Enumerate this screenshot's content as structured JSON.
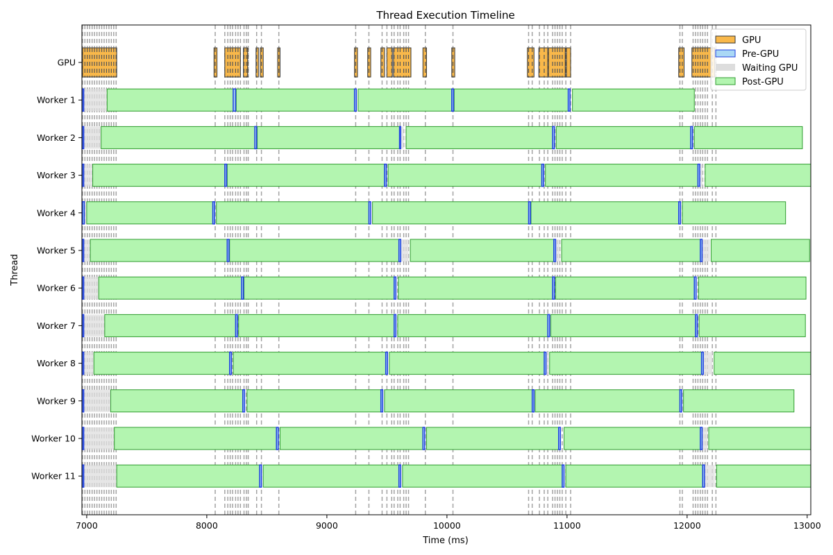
{
  "chart_data": {
    "type": "timeline",
    "title": "Thread Execution Timeline",
    "xlabel": "Time (ms)",
    "ylabel": "Thread",
    "xlim": [
      6960,
      13030
    ],
    "xticks": [
      7000,
      8000,
      9000,
      10000,
      11000,
      12000,
      13000
    ],
    "xtick_labels": [
      "7000",
      "8000",
      "9000",
      "10000",
      "11000",
      "12000",
      "13000"
    ],
    "grid": false,
    "legend_position": "top-right",
    "legend": [
      {
        "key": "gpu",
        "label": "GPU"
      },
      {
        "key": "pre",
        "label": "Pre-GPU"
      },
      {
        "key": "wait",
        "label": "Waiting GPU"
      },
      {
        "key": "post",
        "label": "Post-GPU"
      }
    ],
    "colors": {
      "gpu_fill": "#f9b84a",
      "gpu_edge": "#333333",
      "pre_fill": "#aad8f5",
      "pre_edge": "#1f3fe0",
      "wait_fill": "#dddddd",
      "post_fill": "#b3f5b0",
      "post_edge": "#2e9b2e",
      "marker_line": "#999999"
    },
    "gpu_marks": [
      6965,
      6985,
      7005,
      7025,
      7045,
      7065,
      7085,
      7105,
      7125,
      7145,
      7165,
      7185,
      7205,
      7225,
      7245,
      8070,
      8150,
      8175,
      8195,
      8215,
      8240,
      8260,
      8280,
      8310,
      8330,
      8345,
      8415,
      8455,
      8600,
      9240,
      9350,
      9460,
      9500,
      9540,
      9560,
      9590,
      9610,
      9640,
      9660,
      9680,
      9820,
      10050,
      10680,
      10710,
      10770,
      10810,
      10840,
      10880,
      10900,
      10920,
      10940,
      10960,
      10990,
      11030,
      11940,
      11960,
      12050,
      12070,
      12090,
      12110,
      12130,
      12150,
      12170,
      12210,
      12240
    ],
    "gpu_blocks": [
      [
        6965,
        7250
      ],
      [
        8060,
        8085
      ],
      [
        8150,
        8280
      ],
      [
        8305,
        8340
      ],
      [
        8410,
        8430
      ],
      [
        8445,
        8470
      ],
      [
        8590,
        8610
      ],
      [
        9230,
        9255
      ],
      [
        9340,
        9365
      ],
      [
        9450,
        9480
      ],
      [
        9500,
        9545
      ],
      [
        9555,
        9700
      ],
      [
        9800,
        9830
      ],
      [
        10040,
        10065
      ],
      [
        10670,
        10725
      ],
      [
        10765,
        10840
      ],
      [
        10845,
        10985
      ],
      [
        10995,
        11030
      ],
      [
        11930,
        11975
      ],
      [
        12040,
        12230
      ]
    ],
    "workers": [
      {
        "name": "Worker 1",
        "segments": [
          [
            "pre",
            6965,
            6975
          ],
          [
            "wait",
            6975,
            7170
          ],
          [
            "post",
            7170,
            8220
          ],
          [
            "pre",
            8220,
            8240
          ],
          [
            "post",
            8245,
            9230
          ],
          [
            "pre",
            9230,
            9245
          ],
          [
            "post",
            9260,
            10040
          ],
          [
            "pre",
            10040,
            10055
          ],
          [
            "post",
            10060,
            11010
          ],
          [
            "pre",
            11010,
            11025
          ],
          [
            "post",
            11045,
            12060
          ]
        ]
      },
      {
        "name": "Worker 2",
        "segments": [
          [
            "pre",
            6965,
            6975
          ],
          [
            "wait",
            6975,
            7120
          ],
          [
            "post",
            7120,
            8400
          ],
          [
            "pre",
            8400,
            8415
          ],
          [
            "post",
            8420,
            9605
          ],
          [
            "pre",
            9605,
            9615
          ],
          [
            "wait",
            9615,
            9640
          ],
          [
            "post",
            9660,
            10880
          ],
          [
            "pre",
            10880,
            10895
          ],
          [
            "post",
            10910,
            12030
          ],
          [
            "pre",
            12030,
            12045
          ],
          [
            "post",
            12060,
            12960
          ]
        ]
      },
      {
        "name": "Worker 3",
        "segments": [
          [
            "pre",
            6965,
            6975
          ],
          [
            "wait",
            6975,
            7050
          ],
          [
            "post",
            7050,
            8150
          ],
          [
            "pre",
            8150,
            8165
          ],
          [
            "post",
            8170,
            9480
          ],
          [
            "pre",
            9480,
            9495
          ],
          [
            "post",
            9510,
            10790
          ],
          [
            "pre",
            10790,
            10805
          ],
          [
            "post",
            10820,
            12090
          ],
          [
            "pre",
            12090,
            12105
          ],
          [
            "wait",
            12105,
            12130
          ],
          [
            "post",
            12150,
            13030
          ]
        ]
      },
      {
        "name": "Worker 4",
        "segments": [
          [
            "pre",
            6965,
            6980
          ],
          [
            "wait",
            6980,
            7000
          ],
          [
            "post",
            7000,
            8050
          ],
          [
            "pre",
            8050,
            8065
          ],
          [
            "post",
            8080,
            9350
          ],
          [
            "pre",
            9350,
            9365
          ],
          [
            "post",
            9380,
            10680
          ],
          [
            "pre",
            10680,
            10695
          ],
          [
            "post",
            10700,
            11930
          ],
          [
            "pre",
            11930,
            11945
          ],
          [
            "post",
            11960,
            12820
          ]
        ]
      },
      {
        "name": "Worker 5",
        "segments": [
          [
            "pre",
            6965,
            6975
          ],
          [
            "wait",
            6975,
            7030
          ],
          [
            "post",
            7030,
            8170
          ],
          [
            "pre",
            8170,
            8185
          ],
          [
            "post",
            8190,
            9600
          ],
          [
            "pre",
            9600,
            9615
          ],
          [
            "wait",
            9615,
            9680
          ],
          [
            "post",
            9695,
            10890
          ],
          [
            "pre",
            10890,
            10905
          ],
          [
            "wait",
            10905,
            10940
          ],
          [
            "post",
            10955,
            12110
          ],
          [
            "pre",
            12110,
            12125
          ],
          [
            "wait",
            12125,
            12190
          ],
          [
            "post",
            12200,
            13020
          ]
        ]
      },
      {
        "name": "Worker 6",
        "segments": [
          [
            "pre",
            6965,
            6975
          ],
          [
            "wait",
            6975,
            7100
          ],
          [
            "post",
            7100,
            8290
          ],
          [
            "pre",
            8290,
            8305
          ],
          [
            "post",
            8310,
            9560
          ],
          [
            "pre",
            9560,
            9575
          ],
          [
            "post",
            9595,
            10880
          ],
          [
            "pre",
            10880,
            10895
          ],
          [
            "post",
            10905,
            12060
          ],
          [
            "pre",
            12060,
            12075
          ],
          [
            "post",
            12095,
            12990
          ]
        ]
      },
      {
        "name": "Worker 7",
        "segments": [
          [
            "pre",
            6965,
            6975
          ],
          [
            "wait",
            6975,
            7150
          ],
          [
            "post",
            7150,
            8240
          ],
          [
            "pre",
            8240,
            8255
          ],
          [
            "post",
            8265,
            9560
          ],
          [
            "pre",
            9560,
            9575
          ],
          [
            "post",
            9590,
            10840
          ],
          [
            "pre",
            10840,
            10855
          ],
          [
            "post",
            10865,
            12070
          ],
          [
            "pre",
            12070,
            12085
          ],
          [
            "post",
            12100,
            12985
          ]
        ]
      },
      {
        "name": "Worker 8",
        "segments": [
          [
            "pre",
            6965,
            6975
          ],
          [
            "wait",
            6975,
            7060
          ],
          [
            "post",
            7060,
            8190
          ],
          [
            "pre",
            8190,
            8205
          ],
          [
            "post",
            8220,
            9490
          ],
          [
            "pre",
            9490,
            9505
          ],
          [
            "post",
            9520,
            10810
          ],
          [
            "pre",
            10810,
            10825
          ],
          [
            "wait",
            10825,
            10850
          ],
          [
            "post",
            10855,
            12120
          ],
          [
            "pre",
            12120,
            12135
          ],
          [
            "wait",
            12135,
            12210
          ],
          [
            "post",
            12225,
            13030
          ]
        ]
      },
      {
        "name": "Worker 9",
        "segments": [
          [
            "pre",
            6965,
            6975
          ],
          [
            "wait",
            6975,
            7200
          ],
          [
            "post",
            7200,
            8300
          ],
          [
            "pre",
            8300,
            8315
          ],
          [
            "post",
            8335,
            9450
          ],
          [
            "pre",
            9450,
            9465
          ],
          [
            "post",
            9480,
            10710
          ],
          [
            "pre",
            10710,
            10725
          ],
          [
            "post",
            10735,
            11940
          ],
          [
            "pre",
            11940,
            11955
          ],
          [
            "post",
            11970,
            12890
          ]
        ]
      },
      {
        "name": "Worker 10",
        "segments": [
          [
            "pre",
            6965,
            6975
          ],
          [
            "wait",
            6975,
            7230
          ],
          [
            "post",
            7230,
            8580
          ],
          [
            "pre",
            8580,
            8595
          ],
          [
            "post",
            8610,
            9800
          ],
          [
            "pre",
            9800,
            9815
          ],
          [
            "post",
            9830,
            10930
          ],
          [
            "pre",
            10930,
            10945
          ],
          [
            "post",
            10975,
            12110
          ],
          [
            "pre",
            12110,
            12125
          ],
          [
            "wait",
            12125,
            12170
          ],
          [
            "post",
            12180,
            13030
          ]
        ]
      },
      {
        "name": "Worker 11",
        "segments": [
          [
            "pre",
            6965,
            6975
          ],
          [
            "wait",
            6975,
            7250
          ],
          [
            "post",
            7250,
            8440
          ],
          [
            "pre",
            8440,
            8455
          ],
          [
            "post",
            8470,
            9600
          ],
          [
            "pre",
            9600,
            9615
          ],
          [
            "post",
            9630,
            10960
          ],
          [
            "pre",
            10960,
            10975
          ],
          [
            "post",
            10990,
            12130
          ],
          [
            "pre",
            12130,
            12145
          ],
          [
            "wait",
            12145,
            12230
          ],
          [
            "post",
            12245,
            13030
          ]
        ]
      }
    ],
    "gpu_row_label": "GPU"
  }
}
